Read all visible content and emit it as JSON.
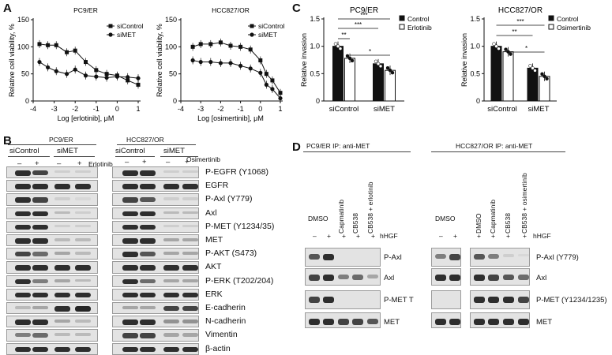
{
  "panels": {
    "A": "A",
    "B": "B",
    "C": "C",
    "D": "D"
  },
  "chart_data": [
    {
      "type": "line",
      "title": "PC9/ER",
      "xlabel": "Log [erlotinib], μM",
      "ylabel": "Relative cell viability, %",
      "xlim": [
        -4,
        1
      ],
      "ylim": [
        0,
        150
      ],
      "x_ticks": [
        "-4",
        "-3",
        "-2",
        "-1",
        "0",
        "1"
      ],
      "y_ticks": [
        "0",
        "50",
        "100",
        "150"
      ],
      "series": [
        {
          "name": "siControl",
          "marker": "square",
          "x": [
            -3.7,
            -3.3,
            -2.9,
            -2.4,
            -2.0,
            -1.5,
            -1.0,
            -0.5,
            0.0,
            0.5,
            1.0
          ],
          "values": [
            105,
            103,
            103,
            90,
            93,
            72,
            57,
            50,
            47,
            38,
            30
          ]
        },
        {
          "name": "siMET",
          "marker": "circle",
          "x": [
            -3.7,
            -3.3,
            -2.9,
            -2.4,
            -2.0,
            -1.5,
            -1.0,
            -0.5,
            0.0,
            0.5,
            1.0
          ],
          "values": [
            72,
            62,
            55,
            50,
            58,
            47,
            45,
            43,
            45,
            44,
            42
          ]
        }
      ]
    },
    {
      "type": "line",
      "title": "HCC827/OR",
      "xlabel": "Log [osimertinib], μM",
      "ylabel": "Relative cell viability, %",
      "xlim": [
        -4,
        1
      ],
      "ylim": [
        0,
        150
      ],
      "x_ticks": [
        "-4",
        "-3",
        "-2",
        "-1",
        "0",
        "1"
      ],
      "y_ticks": [
        "0",
        "50",
        "100",
        "150"
      ],
      "series": [
        {
          "name": "siControl",
          "marker": "square",
          "x": [
            -3.4,
            -3.0,
            -2.5,
            -2.0,
            -1.5,
            -1.0,
            -0.5,
            0.0,
            0.3,
            0.6,
            1.0
          ],
          "values": [
            100,
            105,
            105,
            108,
            102,
            100,
            95,
            75,
            50,
            38,
            15
          ]
        },
        {
          "name": "siMET",
          "marker": "circle",
          "x": [
            -3.4,
            -3.0,
            -2.5,
            -2.0,
            -1.5,
            -1.0,
            -0.5,
            0.0,
            0.3,
            0.6,
            1.0
          ],
          "values": [
            75,
            72,
            72,
            70,
            70,
            65,
            60,
            52,
            30,
            22,
            5
          ]
        }
      ]
    },
    {
      "type": "bar",
      "title": "PC9/ER",
      "ylabel": "Relative invasion",
      "ylim": [
        0,
        1.5
      ],
      "y_ticks": [
        "0",
        "0.5",
        "1.0",
        "1.5"
      ],
      "categories": [
        "siControl",
        "siMET"
      ],
      "series": [
        {
          "name": "Control",
          "values": [
            1.0,
            0.68
          ]
        },
        {
          "name": "Erlotinib",
          "values": [
            0.78,
            0.56
          ]
        }
      ],
      "significance": [
        "***",
        "***",
        "**",
        "*"
      ]
    },
    {
      "type": "bar",
      "title": "HCC827/OR",
      "ylabel": "Relative invasion",
      "ylim": [
        0,
        1.5
      ],
      "y_ticks": [
        "0",
        "0.5",
        "1.0",
        "1.5"
      ],
      "categories": [
        "siControl",
        "siMET"
      ],
      "series": [
        {
          "name": "Control",
          "values": [
            1.0,
            0.6
          ]
        },
        {
          "name": "Osimertinib",
          "values": [
            0.9,
            0.45
          ]
        }
      ],
      "significance": [
        "***",
        "**",
        "*"
      ]
    }
  ],
  "panel_b": {
    "left_title": "PC9/ER",
    "right_title": "HCC827/OR",
    "groups": [
      "siControl",
      "siMET"
    ],
    "signs": [
      "–",
      "+",
      "–",
      "+"
    ],
    "drug_left": "Erlotinib",
    "drug_right": "Osimertinib",
    "markers": [
      "P-EGFR (Y1068)",
      "EGFR",
      "P-Axl (Y779)",
      "Axl",
      "P-MET (Y1234/35)",
      "MET",
      "P-AKT (S473)",
      "AKT",
      "P-ERK (T202/204)",
      "ERK",
      "E-cadherin",
      "N-cadherin",
      "Vimentin",
      "β-actin"
    ]
  },
  "panel_d": {
    "left_title": "PC9/ER IP: anti-MET",
    "right_title": "HCC827/OR IP: anti-MET",
    "left_lanes": [
      "DMSO",
      "Capmatinib",
      "CB538",
      "CB538 + erlotinib"
    ],
    "right_lanes": [
      "DMSO",
      "Capmatinib",
      "CB538",
      "CB538 + osimertinib"
    ],
    "signs": [
      "–",
      "+",
      "+",
      "+",
      "+",
      "+"
    ],
    "hgf": "hHGF",
    "left_markers": [
      "P-Axl",
      "Axl",
      "P-MET T",
      "MET"
    ],
    "right_markers": [
      "P-Axl (Y779)",
      "Axl",
      "P-MET (Y1234/1235)",
      "MET"
    ]
  }
}
